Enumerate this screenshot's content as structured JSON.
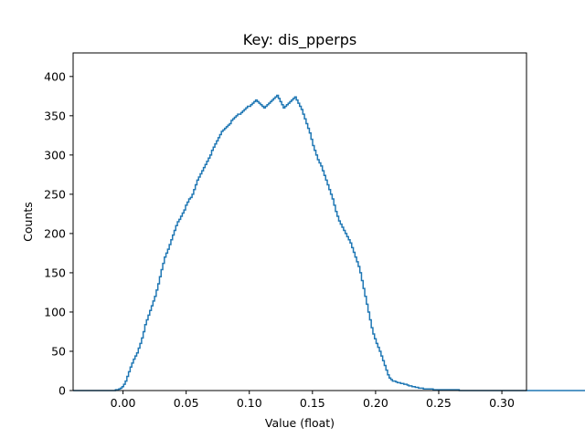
{
  "chart_data": {
    "type": "histogram",
    "title": "Key: dis_pperps",
    "xlabel": "Value (float)",
    "ylabel": "Counts",
    "xlim": [
      -0.0395,
      0.3195
    ],
    "ylim": [
      0,
      430
    ],
    "xticks": [
      0.0,
      0.05,
      0.1,
      0.15,
      0.2,
      0.25,
      0.3
    ],
    "xtick_labels": [
      "0.00",
      "0.05",
      "0.10",
      "0.15",
      "0.20",
      "0.25",
      "0.30"
    ],
    "yticks": [
      0,
      50,
      100,
      150,
      200,
      250,
      300,
      350,
      400
    ],
    "ytick_labels": [
      "0",
      "50",
      "100",
      "150",
      "200",
      "250",
      "300",
      "350",
      "400"
    ],
    "grid": false,
    "legend": "none",
    "color": "#1f77b4",
    "series": [
      {
        "x_start": -0.0395,
        "bin_width": 0.00129,
        "counts": [
          0,
          0,
          0,
          0,
          0,
          0,
          0,
          0,
          0,
          0,
          0,
          0,
          0,
          0,
          0,
          0,
          0,
          0,
          0,
          0,
          0,
          0,
          0,
          0,
          0,
          0,
          1,
          1,
          2,
          3,
          5,
          8,
          12,
          18,
          24,
          30,
          35,
          40,
          44,
          48,
          54,
          60,
          67,
          75,
          84,
          90,
          96,
          102,
          108,
          114,
          120,
          128,
          136,
          145,
          154,
          162,
          170,
          175,
          180,
          186,
          192,
          198,
          204,
          210,
          215,
          218,
          222,
          226,
          230,
          236,
          240,
          244,
          246,
          250,
          256,
          262,
          268,
          272,
          276,
          280,
          284,
          288,
          292,
          296,
          300,
          306,
          310,
          314,
          318,
          322,
          326,
          330,
          332,
          334,
          336,
          338,
          340,
          344,
          346,
          348,
          350,
          352,
          352,
          354,
          356,
          358,
          360,
          362,
          362,
          364,
          366,
          368,
          370,
          368,
          366,
          364,
          362,
          360,
          362,
          364,
          366,
          368,
          370,
          372,
          374,
          376,
          372,
          368,
          364,
          360,
          362,
          364,
          366,
          368,
          370,
          372,
          374,
          370,
          366,
          362,
          358,
          352,
          346,
          340,
          334,
          328,
          320,
          312,
          306,
          300,
          294,
          290,
          286,
          280,
          274,
          268,
          262,
          256,
          250,
          244,
          236,
          228,
          222,
          216,
          212,
          208,
          204,
          200,
          196,
          192,
          188,
          182,
          176,
          170,
          164,
          158,
          150,
          140,
          130,
          120,
          110,
          100,
          90,
          80,
          72,
          66,
          60,
          55,
          50,
          44,
          38,
          32,
          26,
          20,
          16,
          14,
          12,
          12,
          11,
          10,
          10,
          9,
          9,
          8,
          8,
          7,
          6,
          6,
          5,
          5,
          4,
          4,
          3,
          3,
          3,
          2,
          2,
          2,
          2,
          2,
          2,
          1,
          1,
          1,
          1,
          1,
          1,
          1,
          1,
          1,
          1,
          1,
          1,
          1,
          1,
          1,
          1,
          0,
          0,
          0,
          0,
          0,
          0,
          0,
          0,
          0,
          0,
          0,
          0,
          0,
          0,
          0,
          0,
          0,
          0,
          0,
          0,
          0,
          0,
          0,
          0,
          0,
          0,
          0,
          0,
          0,
          0,
          0,
          0,
          0,
          0,
          0,
          0,
          0,
          0,
          0,
          0,
          0,
          0,
          0,
          0,
          0,
          0,
          0,
          0,
          0,
          0,
          0,
          0,
          0,
          0,
          0,
          0,
          0,
          0,
          0,
          0,
          0,
          0,
          0,
          0,
          0,
          0,
          0,
          0,
          0,
          0,
          0,
          0,
          0,
          0,
          0,
          0,
          0,
          0,
          0,
          0,
          0,
          0,
          0,
          0,
          0,
          0,
          0,
          0,
          0,
          0,
          0,
          0,
          0,
          0,
          0,
          0,
          0,
          0,
          0,
          0,
          0,
          0,
          0,
          0,
          0,
          0,
          0,
          0,
          0,
          0,
          0,
          0,
          0,
          0,
          0,
          0
        ]
      }
    ]
  }
}
